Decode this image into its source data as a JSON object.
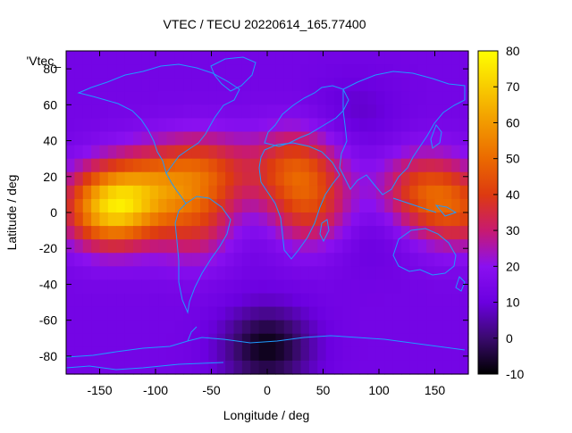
{
  "chart_data": {
    "type": "heatmap",
    "title": "VTEC / TECU 20220614_165.77400",
    "xlabel": "Longitude / deg",
    "ylabel": "Latitude / deg",
    "key_label": "'Vtec_",
    "xlim": [
      -180,
      180
    ],
    "ylim": [
      -90,
      90
    ],
    "x_ticks": [
      -150,
      -100,
      -50,
      0,
      50,
      100,
      150
    ],
    "y_ticks": [
      -80,
      -60,
      -40,
      -20,
      0,
      20,
      40,
      60,
      80
    ],
    "colorbar": {
      "range": [
        -10,
        80
      ],
      "ticks": [
        -10,
        0,
        10,
        20,
        30,
        40,
        50,
        60,
        70,
        80
      ],
      "palette": [
        {
          "value": -10,
          "color": "#000000"
        },
        {
          "value": 0,
          "color": "#3a0a6e"
        },
        {
          "value": 10,
          "color": "#6b00e0"
        },
        {
          "value": 20,
          "color": "#8a10f0"
        },
        {
          "value": 30,
          "color": "#c81a70"
        },
        {
          "value": 40,
          "color": "#dd3a10"
        },
        {
          "value": 50,
          "color": "#eb6a00"
        },
        {
          "value": 60,
          "color": "#f29a00"
        },
        {
          "value": 70,
          "color": "#f8cc00"
        },
        {
          "value": 80,
          "color": "#ffff00"
        }
      ]
    },
    "background_vtec": 13,
    "features": [
      {
        "lon": -140,
        "lat": 3,
        "peak": 68
      },
      {
        "lon": -100,
        "lat": 15,
        "peak": 38
      },
      {
        "lon": -55,
        "lat": 22,
        "peak": 40
      },
      {
        "lon": -60,
        "lat": -8,
        "peak": 34
      },
      {
        "lon": 25,
        "lat": 25,
        "peak": 42
      },
      {
        "lon": 40,
        "lat": 0,
        "peak": 36
      },
      {
        "lon": 140,
        "lat": 12,
        "peak": 40
      },
      {
        "lon": 175,
        "lat": 0,
        "peak": 35
      },
      {
        "lon": 0,
        "lat": -75,
        "peak": -8
      },
      {
        "lon": 85,
        "lat": -10,
        "peak": 7
      },
      {
        "lon": 80,
        "lat": 55,
        "peak": 8
      },
      {
        "lon": -25,
        "lat": -10,
        "peak": 7
      }
    ],
    "map_overlay": "coastlines",
    "grid": false
  }
}
